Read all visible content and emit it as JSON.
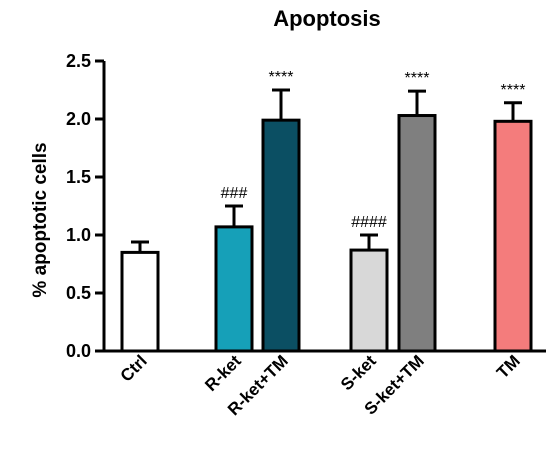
{
  "chart_data": {
    "type": "bar",
    "title": "Apoptosis",
    "ylabel": "% apoptotic cells",
    "xlabel": "",
    "ylim": [
      0,
      2.5
    ],
    "yticks": [
      "0.0",
      "0.5",
      "1.0",
      "1.5",
      "2.0",
      "2.5"
    ],
    "categories": [
      "Ctrl",
      "R-ket",
      "R-ket+TM",
      "S-ket",
      "S-ket+TM",
      "TM"
    ],
    "values": [
      0.85,
      1.07,
      1.99,
      0.87,
      2.03,
      1.98
    ],
    "errors": [
      0.09,
      0.18,
      0.26,
      0.13,
      0.21,
      0.16
    ],
    "annotations": [
      "",
      "###",
      "****",
      "####",
      "****",
      "****"
    ],
    "colors": [
      "#ffffff",
      "#16a0b8",
      "#0b4f63",
      "#d8d8d8",
      "#7f7f7f",
      "#f47c7c"
    ],
    "grid": false,
    "legend": "none"
  }
}
